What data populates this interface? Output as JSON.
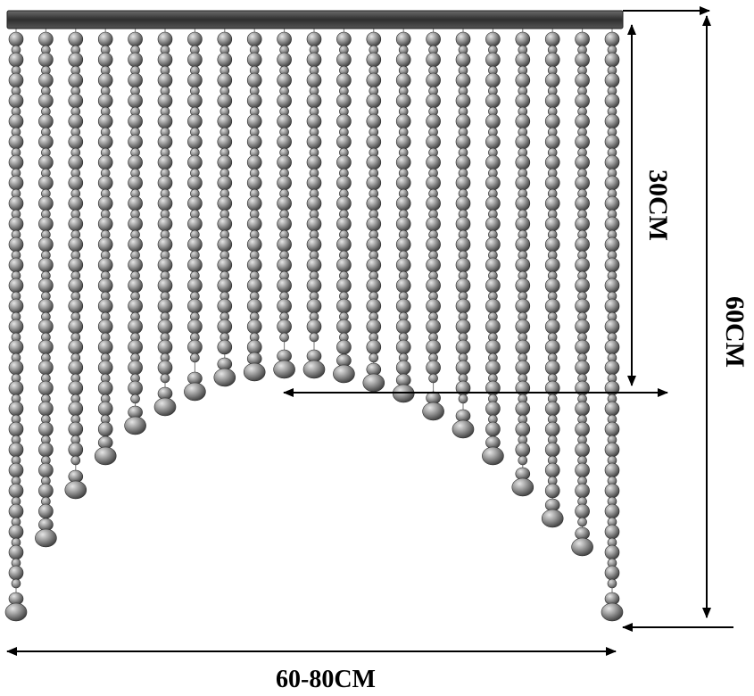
{
  "dimensions": {
    "arch_height": "30CM",
    "total_height": "60CM",
    "width": "60-80CM"
  },
  "colors": {
    "bead_light": "#c9c9c9",
    "bead_mid": "#8a8a8a",
    "bead_dark": "#3d3d3d",
    "rail": "#4a4a4a",
    "line": "#000000"
  }
}
